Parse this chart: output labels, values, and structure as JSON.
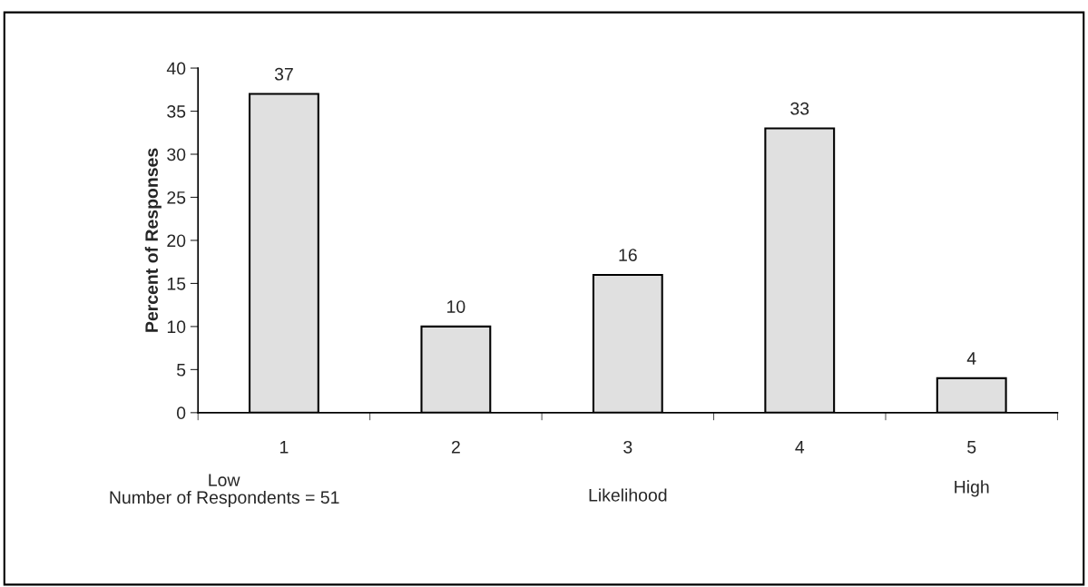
{
  "chart_data": {
    "type": "bar",
    "xlabel": "Likelihood",
    "ylabel": "Percent of Responses",
    "categories": [
      "1",
      "2",
      "3",
      "4",
      "5"
    ],
    "values": [
      37,
      10,
      16,
      33,
      4
    ],
    "color": "#e0e0e0",
    "ylim": [
      0,
      40
    ],
    "yticks": [
      0,
      5,
      10,
      15,
      20,
      25,
      30,
      35,
      40
    ],
    "data_labels": true,
    "grid": false,
    "annotations": [
      "Low",
      "High",
      "Number of Respondents = 51"
    ]
  }
}
